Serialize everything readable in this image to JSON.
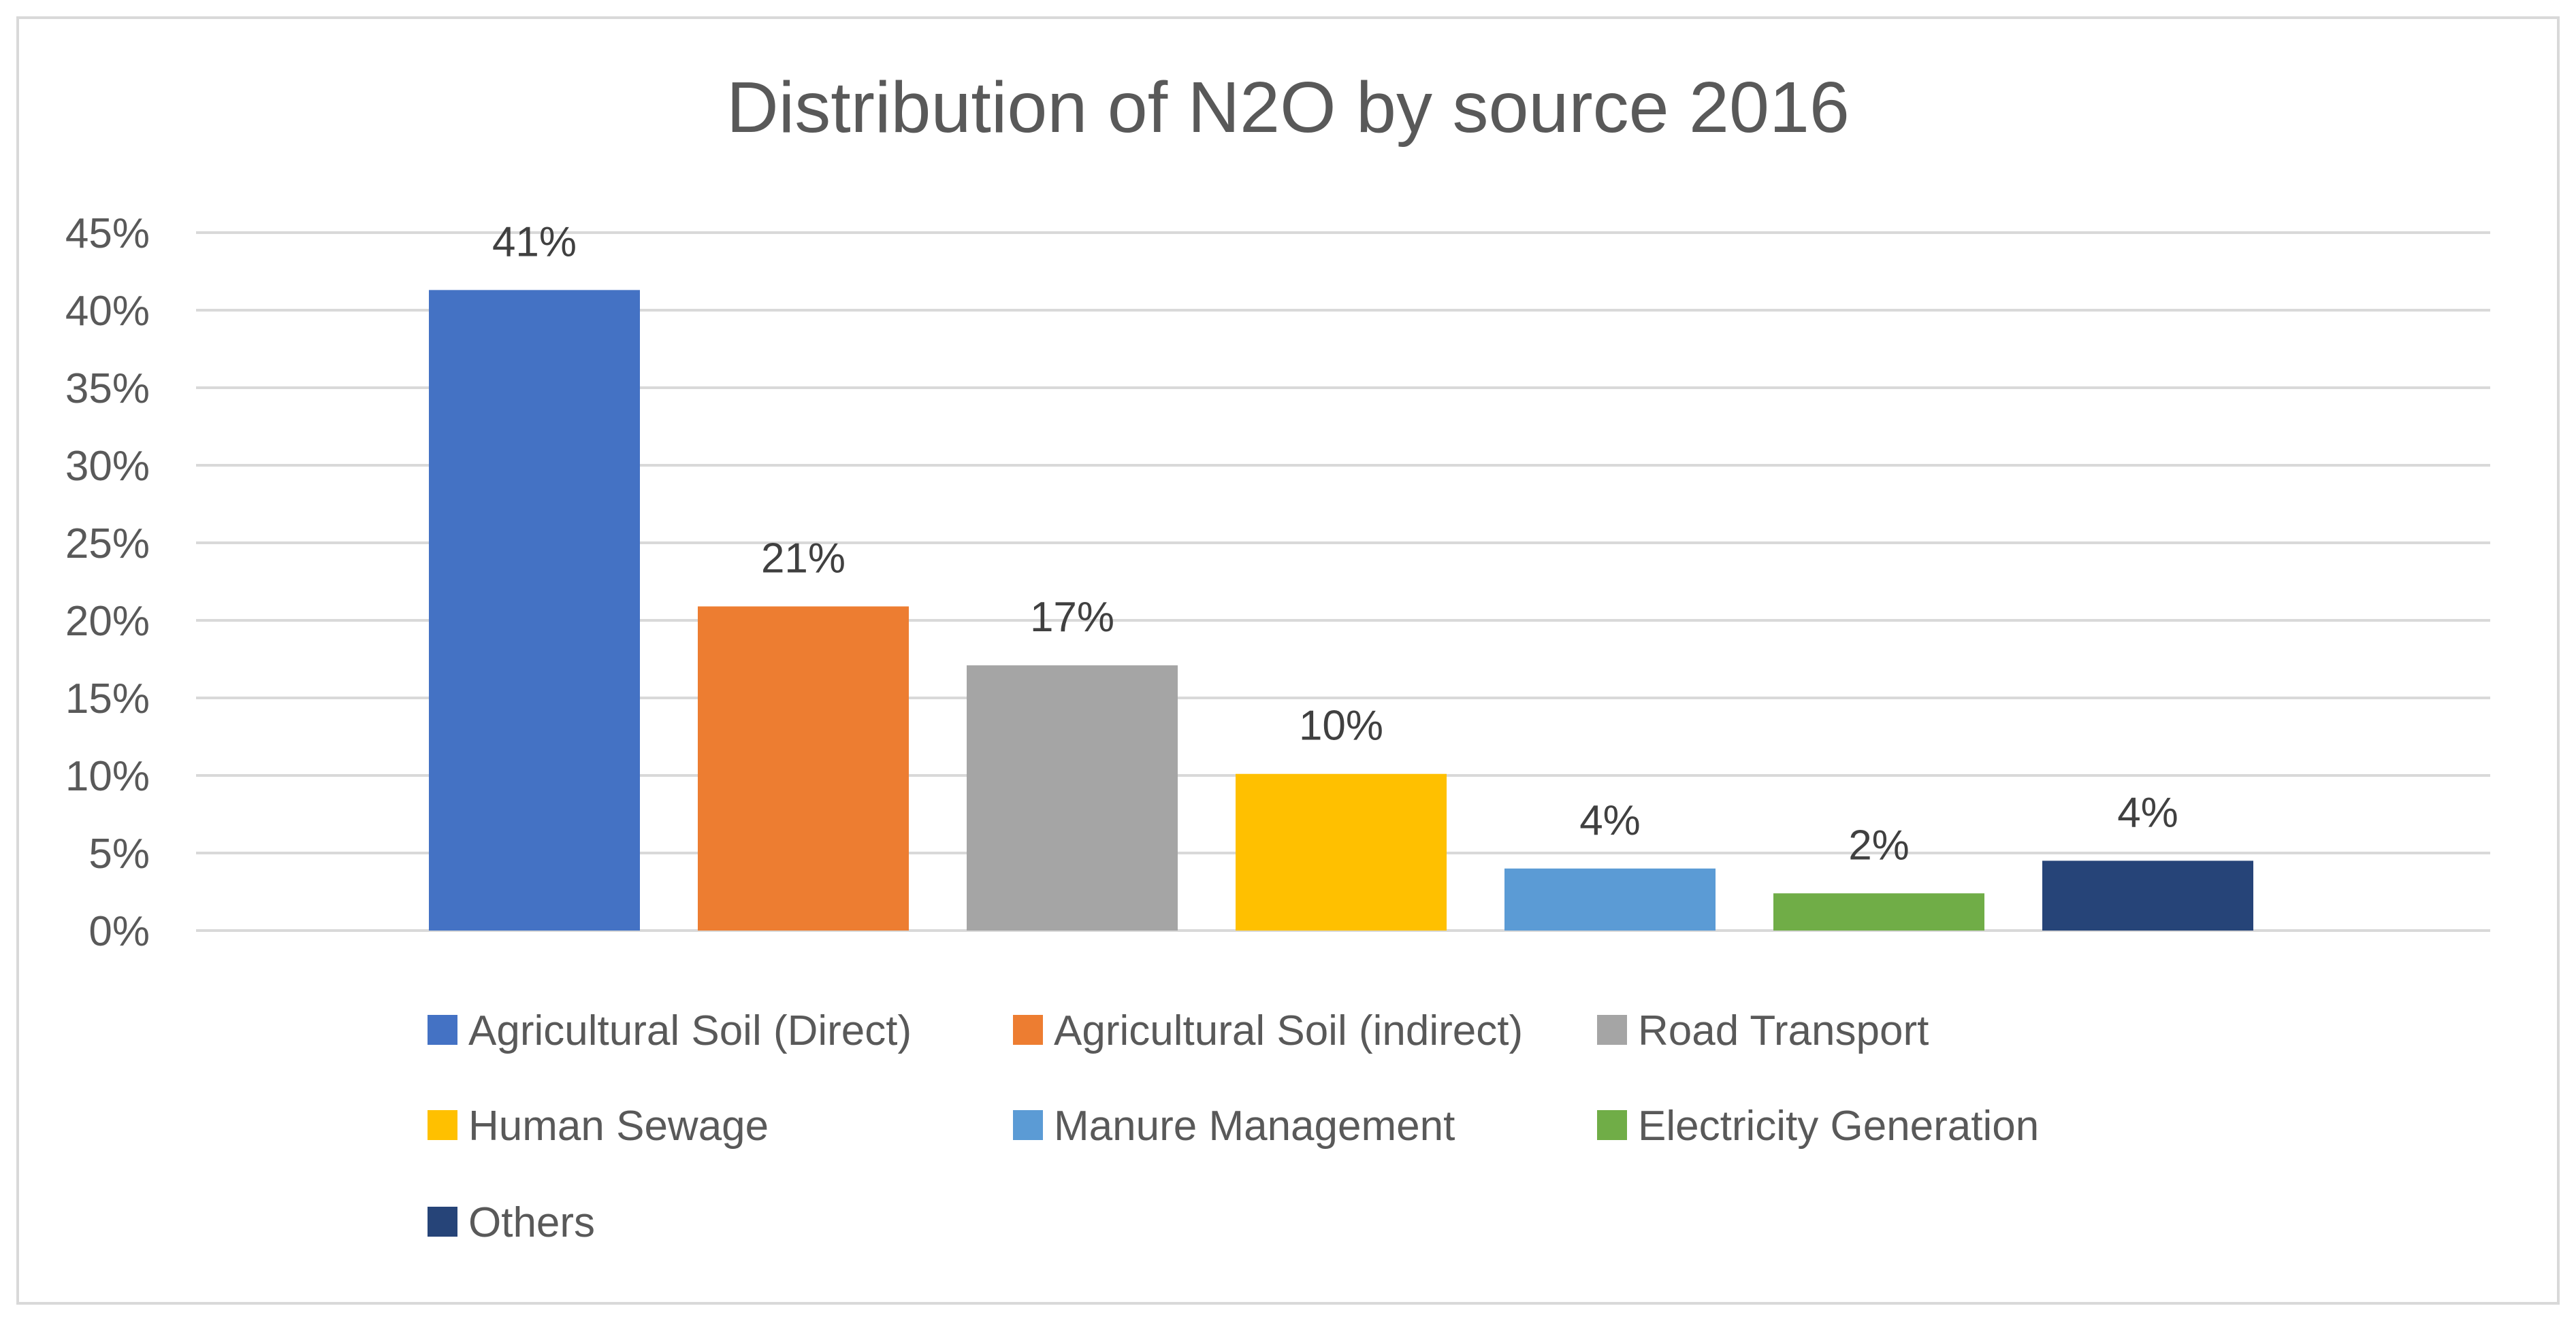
{
  "chart_data": {
    "type": "bar",
    "title": "Distribution of N2O by source 2016",
    "xlabel": "",
    "ylabel": "",
    "ylim": [
      0,
      45
    ],
    "y_ticks": [
      "0%",
      "5%",
      "10%",
      "15%",
      "20%",
      "25%",
      "30%",
      "35%",
      "40%",
      "45%"
    ],
    "y_tick_values": [
      0,
      5,
      10,
      15,
      20,
      25,
      30,
      35,
      40,
      45
    ],
    "categories": [
      "Agricultural Soil (Direct)",
      "Agricultural Soil (indirect)",
      "Road Transport",
      "Human Sewage",
      "Manure Management",
      "Electricity Generation",
      "Others"
    ],
    "values": [
      41.3,
      20.9,
      17.1,
      10.1,
      4.0,
      2.4,
      4.5
    ],
    "data_labels": [
      "41%",
      "21%",
      "17%",
      "10%",
      "4%",
      "2%",
      "4%"
    ],
    "colors": [
      "#4472c4",
      "#ed7d31",
      "#a5a5a5",
      "#ffc000",
      "#5b9bd5",
      "#70ad47",
      "#264478"
    ],
    "gridlines": true,
    "legend_position": "bottom"
  }
}
